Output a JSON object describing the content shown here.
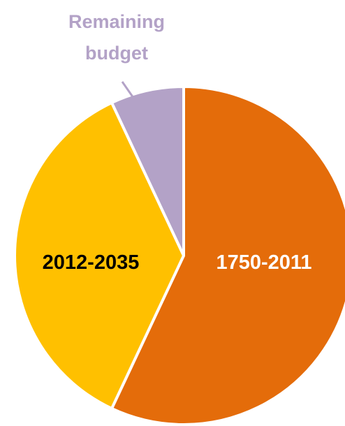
{
  "chart_data": {
    "type": "pie",
    "title": "",
    "slices": [
      {
        "label": "1750-2011",
        "value": 57,
        "color": "#E46C0A",
        "label_color": "#FFFFFF"
      },
      {
        "label": "2012-2035",
        "value": 36,
        "color": "#FFC000",
        "label_color": "#000000"
      },
      {
        "label": "Remaining budget",
        "value": 7,
        "color": "#B3A2C7",
        "label_color": "#B3A2C7"
      }
    ],
    "start_angle": "12 o'clock",
    "direction": "clockwise",
    "callout": {
      "slice": "Remaining budget",
      "lines": [
        "Remaining",
        "budget"
      ]
    }
  }
}
